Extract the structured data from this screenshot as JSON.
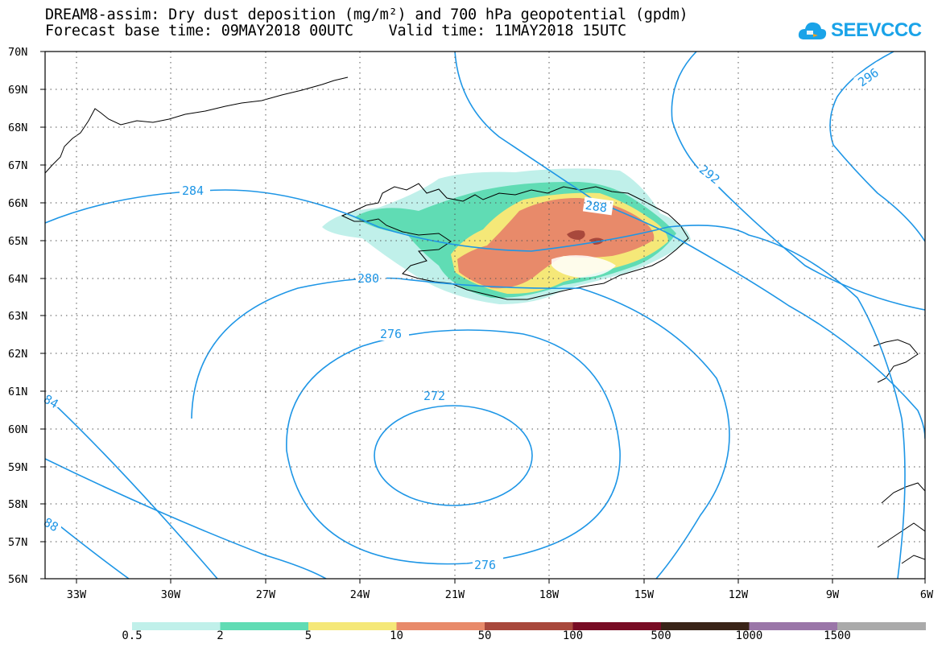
{
  "title": {
    "line1": "DREAM8-assim: Dry dust deposition (mg/m²) and 700 hPa geopotential (gpdm)",
    "line2": "Forecast base time: 09MAY2018 00UTC    Valid time: 11MAY2018 15UTC"
  },
  "logo": {
    "text": "SEEVCCC",
    "icon": "cloud-icon",
    "color": "#1aa3e8"
  },
  "map": {
    "lat_labels": [
      "70N",
      "69N",
      "68N",
      "67N",
      "66N",
      "65N",
      "64N",
      "63N",
      "62N",
      "61N",
      "60N",
      "59N",
      "58N",
      "57N",
      "56N"
    ],
    "lon_labels": [
      "33W",
      "30W",
      "27W",
      "24W",
      "21W",
      "18W",
      "15W",
      "12W",
      "9W",
      "6W"
    ],
    "lat_range": [
      56,
      70
    ],
    "lon_range": [
      -34.5,
      -6
    ],
    "contour_color": "#1e96e6",
    "contour_labels": [
      "296",
      "292",
      "288",
      "284",
      "280",
      "276",
      "272",
      "276",
      "84",
      "88"
    ],
    "grid": "dotted"
  },
  "colorbar": {
    "colors": [
      "#c0f0ea",
      "#60dcb4",
      "#f5e878",
      "#e88a6a",
      "#a8483c",
      "#780c24",
      "#3a2418",
      "#9a76a8",
      "#aaaaaa"
    ],
    "labels": [
      "0.5",
      "2",
      "5",
      "10",
      "50",
      "100",
      "500",
      "1000",
      "1500"
    ]
  }
}
